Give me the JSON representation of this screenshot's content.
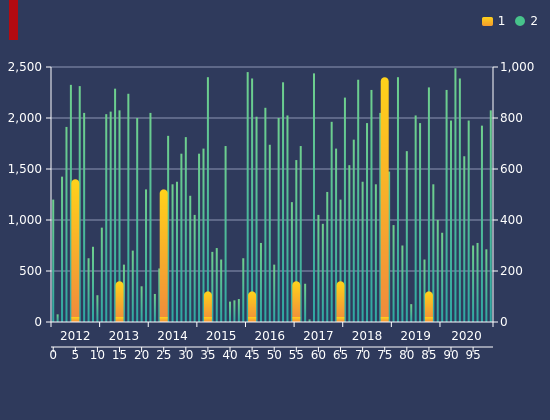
{
  "legend": {
    "items": [
      {
        "label": "1",
        "icon": "rounded-rect-icon",
        "color": "#f5b82e"
      },
      {
        "label": "2",
        "icon": "circle-icon",
        "color": "#47c38b"
      }
    ]
  },
  "colors": {
    "background": "#2f3a5c",
    "accent": "#b40a10",
    "series2": "#5fc693",
    "series1_top": "#ffd21a",
    "series1_bottom": "#f08a3c"
  },
  "chart_data": {
    "type": "bar",
    "grid": true,
    "x_year_labels": [
      "2012",
      "2013",
      "2014",
      "2015",
      "2016",
      "2017",
      "2018",
      "2019",
      "2020"
    ],
    "x_index_ticks": [
      0,
      5,
      10,
      15,
      20,
      25,
      30,
      35,
      40,
      45,
      50,
      55,
      60,
      65,
      70,
      75,
      80,
      85,
      90,
      95
    ],
    "y_left": {
      "range": [
        0,
        2500
      ],
      "ticks": [
        "0",
        "500",
        "1,000",
        "1,500",
        "2,000",
        "2,500"
      ]
    },
    "y_right": {
      "range": [
        0,
        1000
      ],
      "ticks": [
        "0",
        "200",
        "400",
        "600",
        "800",
        "1,000"
      ]
    },
    "series": [
      {
        "axis": "left",
        "points": [
          {
            "x": 5,
            "y": 1400
          },
          {
            "x": 15,
            "y": 400
          },
          {
            "x": 25,
            "y": 1300
          },
          {
            "x": 35,
            "y": 300
          },
          {
            "x": 45,
            "y": 300
          },
          {
            "x": 55,
            "y": 400
          },
          {
            "x": 65,
            "y": 400
          },
          {
            "x": 75,
            "y": 2400
          },
          {
            "x": 85,
            "y": 300
          }
        ]
      },
      {
        "axis": "right",
        "values": [
          480,
          30,
          570,
          765,
          930,
          390,
          925,
          820,
          250,
          295,
          105,
          370,
          815,
          825,
          915,
          830,
          225,
          895,
          280,
          800,
          140,
          520,
          820,
          110,
          210,
          300,
          730,
          540,
          550,
          660,
          725,
          495,
          420,
          660,
          680,
          960,
          275,
          290,
          245,
          690,
          80,
          85,
          90,
          250,
          980,
          955,
          805,
          310,
          840,
          695,
          225,
          800,
          940,
          810,
          470,
          635,
          690,
          150,
          10,
          975,
          420,
          385,
          510,
          785,
          680,
          480,
          880,
          615,
          715,
          950,
          550,
          780,
          910,
          540,
          820,
          610,
          590,
          380,
          960,
          300,
          670,
          70,
          810,
          780,
          245,
          920,
          540,
          400,
          350,
          910,
          790,
          995,
          955,
          650,
          790,
          300,
          310,
          770,
          285,
          830
        ]
      }
    ]
  }
}
